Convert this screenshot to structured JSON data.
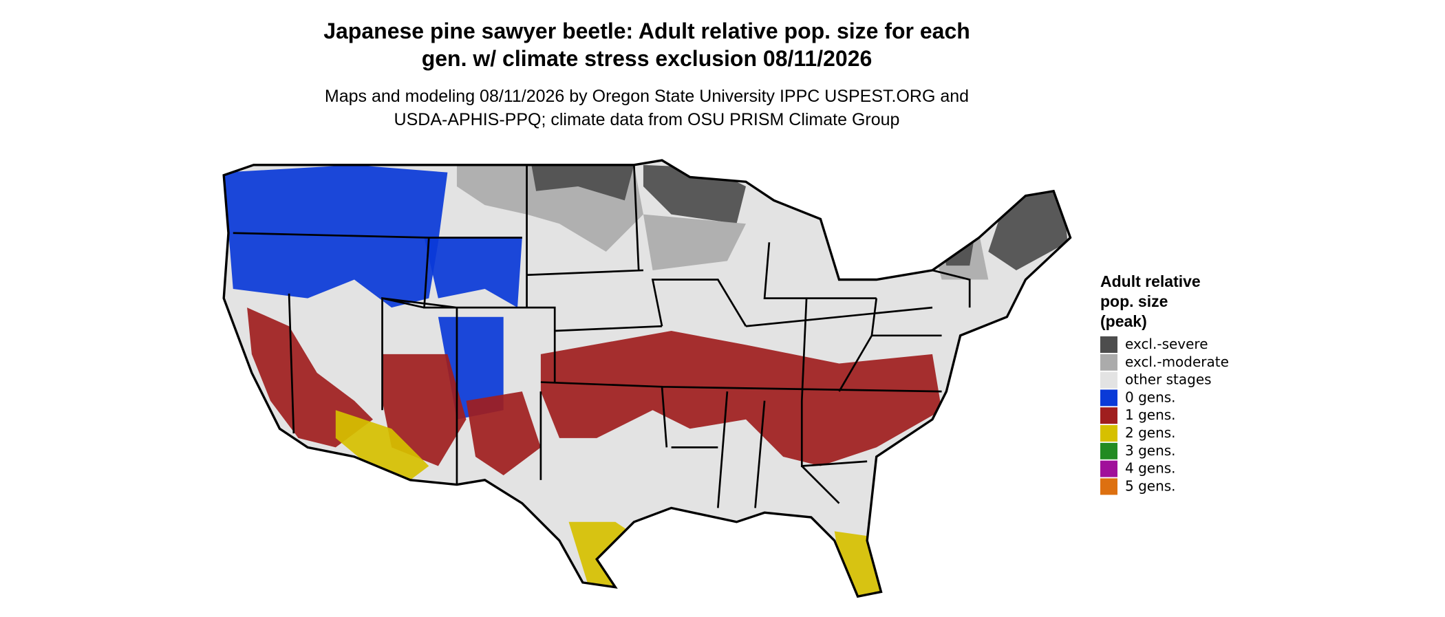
{
  "header": {
    "title": [
      "Japanese pine sawyer beetle: Adult relative pop. size for each",
      "gen. w/ climate stress exclusion 08/11/2026"
    ],
    "subtitle": [
      "Maps and modeling 08/11/2026 by Oregon State University IPPC USPEST.ORG and",
      "USDA-APHIS-PPQ; climate data from OSU PRISM Climate Group"
    ]
  },
  "legend": {
    "title": [
      "Adult relative",
      "pop. size",
      "(peak)"
    ],
    "items": [
      {
        "label": "excl.-severe",
        "color": "#4d4d4d"
      },
      {
        "label": "excl.-moderate",
        "color": "#ababab"
      },
      {
        "label": "other stages",
        "color": "#e3e3e3"
      },
      {
        "label": "0 gens.",
        "color": "#0a3ad8"
      },
      {
        "label": "1 gens.",
        "color": "#a01e1e"
      },
      {
        "label": "2 gens.",
        "color": "#d6c000"
      },
      {
        "label": "3 gens.",
        "color": "#228b22"
      },
      {
        "label": "4 gens.",
        "color": "#a0109a"
      },
      {
        "label": "5 gens.",
        "color": "#dd7010"
      }
    ]
  }
}
